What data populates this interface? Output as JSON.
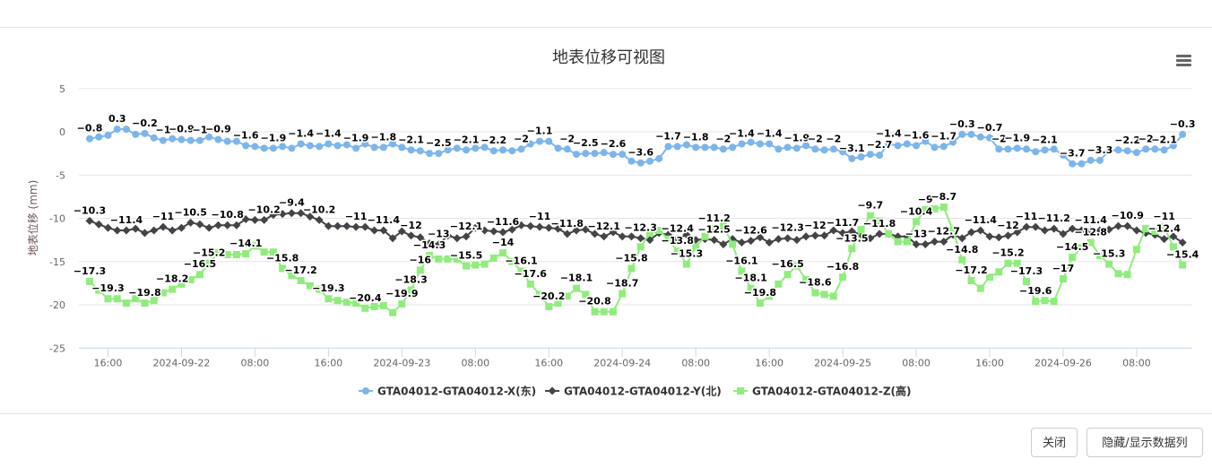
{
  "chart_data": {
    "type": "line",
    "title": "地表位移可视图",
    "ylabel": "地表位移 (mm)",
    "xlabel": "",
    "ylim": [
      -25,
      5
    ],
    "yticks": [
      5,
      0,
      -5,
      -10,
      -15,
      -20,
      -25
    ],
    "grid": true,
    "legend_position": "bottom",
    "data_labels": true,
    "x_ticks": [
      {
        "t": "2024-09-21 16:00",
        "label": "16:00"
      },
      {
        "t": "2024-09-22 00:00",
        "label": "2024-09-22"
      },
      {
        "t": "2024-09-22 08:00",
        "label": "08:00"
      },
      {
        "t": "2024-09-22 16:00",
        "label": "16:00"
      },
      {
        "t": "2024-09-23 00:00",
        "label": "2024-09-23"
      },
      {
        "t": "2024-09-23 08:00",
        "label": "08:00"
      },
      {
        "t": "2024-09-23 16:00",
        "label": "16:00"
      },
      {
        "t": "2024-09-24 00:00",
        "label": "2024-09-24"
      },
      {
        "t": "2024-09-24 08:00",
        "label": "08:00"
      },
      {
        "t": "2024-09-24 16:00",
        "label": "16:00"
      },
      {
        "t": "2024-09-25 00:00",
        "label": "2024-09-25"
      },
      {
        "t": "2024-09-25 08:00",
        "label": "08:00"
      },
      {
        "t": "2024-09-25 16:00",
        "label": "16:00"
      },
      {
        "t": "2024-09-26 00:00",
        "label": "2024-09-26"
      },
      {
        "t": "2024-09-26 08:00",
        "label": "08:00"
      }
    ],
    "x": [
      "2024-09-21 14:00",
      "2024-09-21 15:00",
      "2024-09-21 16:00",
      "2024-09-21 17:00",
      "2024-09-21 18:00",
      "2024-09-21 19:00",
      "2024-09-21 20:00",
      "2024-09-21 21:00",
      "2024-09-21 22:00",
      "2024-09-21 23:00",
      "2024-09-22 00:00",
      "2024-09-22 01:00",
      "2024-09-22 02:00",
      "2024-09-22 03:00",
      "2024-09-22 04:00",
      "2024-09-22 05:00",
      "2024-09-22 06:00",
      "2024-09-22 07:00",
      "2024-09-22 08:00",
      "2024-09-22 09:00",
      "2024-09-22 10:00",
      "2024-09-22 11:00",
      "2024-09-22 12:00",
      "2024-09-22 13:00",
      "2024-09-22 14:00",
      "2024-09-22 15:00",
      "2024-09-22 16:00",
      "2024-09-22 17:00",
      "2024-09-22 18:00",
      "2024-09-22 19:00",
      "2024-09-22 20:00",
      "2024-09-22 21:00",
      "2024-09-22 22:00",
      "2024-09-22 23:00",
      "2024-09-23 00:00",
      "2024-09-23 01:00",
      "2024-09-23 02:00",
      "2024-09-23 03:00",
      "2024-09-23 04:00",
      "2024-09-23 05:00",
      "2024-09-23 06:00",
      "2024-09-23 07:00",
      "2024-09-23 08:00",
      "2024-09-23 09:00",
      "2024-09-23 10:00",
      "2024-09-23 11:00",
      "2024-09-23 12:00",
      "2024-09-23 13:00",
      "2024-09-23 14:00",
      "2024-09-23 15:00",
      "2024-09-23 16:00",
      "2024-09-23 17:00",
      "2024-09-23 18:00",
      "2024-09-23 19:00",
      "2024-09-23 20:00",
      "2024-09-23 21:00",
      "2024-09-23 22:00",
      "2024-09-23 23:00",
      "2024-09-24 00:00",
      "2024-09-24 01:00",
      "2024-09-24 02:00",
      "2024-09-24 03:00",
      "2024-09-24 04:00",
      "2024-09-24 05:00",
      "2024-09-24 06:00",
      "2024-09-24 07:00",
      "2024-09-24 08:00",
      "2024-09-24 09:00",
      "2024-09-24 10:00",
      "2024-09-24 11:00",
      "2024-09-24 12:00",
      "2024-09-24 13:00",
      "2024-09-24 14:00",
      "2024-09-24 15:00",
      "2024-09-24 16:00",
      "2024-09-24 17:00",
      "2024-09-24 18:00",
      "2024-09-24 19:00",
      "2024-09-24 20:00",
      "2024-09-24 21:00",
      "2024-09-24 22:00",
      "2024-09-24 23:00",
      "2024-09-25 00:00",
      "2024-09-25 01:00",
      "2024-09-25 02:00",
      "2024-09-25 03:00",
      "2024-09-25 04:00",
      "2024-09-25 05:00",
      "2024-09-25 06:00",
      "2024-09-25 07:00",
      "2024-09-25 08:00",
      "2024-09-25 09:00",
      "2024-09-25 10:00",
      "2024-09-25 11:00",
      "2024-09-25 12:00",
      "2024-09-25 13:00",
      "2024-09-25 14:00",
      "2024-09-25 15:00",
      "2024-09-25 16:00",
      "2024-09-25 17:00",
      "2024-09-25 18:00",
      "2024-09-25 19:00",
      "2024-09-25 20:00",
      "2024-09-25 21:00",
      "2024-09-25 22:00",
      "2024-09-25 23:00",
      "2024-09-26 00:00",
      "2024-09-26 01:00",
      "2024-09-26 02:00",
      "2024-09-26 03:00",
      "2024-09-26 04:00",
      "2024-09-26 05:00",
      "2024-09-26 06:00",
      "2024-09-26 07:00",
      "2024-09-26 08:00",
      "2024-09-26 09:00",
      "2024-09-26 10:00",
      "2024-09-26 11:00",
      "2024-09-26 12:00",
      "2024-09-26 13:00"
    ],
    "series": [
      {
        "name": "GTA04012-GTA04012-X(东)",
        "color": "#7cb5ec",
        "marker": "circle",
        "values": [
          -0.8,
          -0.6,
          -0.4,
          0.3,
          0.3,
          -0.3,
          -0.2,
          -0.7,
          -1.0,
          -0.8,
          -0.9,
          -1.0,
          -1.0,
          -0.6,
          -0.9,
          -1.1,
          -1.1,
          -1.6,
          -1.7,
          -1.9,
          -1.9,
          -1.7,
          -1.9,
          -1.4,
          -1.6,
          -1.7,
          -1.4,
          -1.6,
          -1.5,
          -1.9,
          -1.4,
          -1.8,
          -1.8,
          -1.4,
          -1.8,
          -2.1,
          -2.2,
          -2.5,
          -2.5,
          -2.1,
          -1.9,
          -2.1,
          -1.9,
          -1.8,
          -2.2,
          -2.1,
          -2.2,
          -2.0,
          -1.4,
          -1.1,
          -1.1,
          -1.9,
          -2.0,
          -2.6,
          -2.5,
          -2.5,
          -2.4,
          -2.6,
          -2.6,
          -3.4,
          -3.6,
          -3.4,
          -3.1,
          -1.7,
          -1.7,
          -1.5,
          -1.8,
          -1.8,
          -1.8,
          -2.0,
          -1.8,
          -1.4,
          -1.2,
          -1.4,
          -1.4,
          -2.0,
          -1.8,
          -1.9,
          -1.6,
          -2.0,
          -2.1,
          -2.0,
          -2.3,
          -3.1,
          -2.9,
          -2.6,
          -2.7,
          -1.4,
          -1.6,
          -1.4,
          -1.6,
          -1.1,
          -1.8,
          -1.7,
          -1.2,
          -0.3,
          -0.3,
          -0.6,
          -0.7,
          -2.0,
          -2.0,
          -1.9,
          -2.0,
          -2.3,
          -2.1,
          -2.0,
          -2.7,
          -3.7,
          -3.7,
          -3.3,
          -3.3,
          -2.2,
          -2.1,
          -2.2,
          -2.4,
          -2.0,
          -2.0,
          -2.1,
          -1.6,
          -0.3
        ]
      },
      {
        "name": "GTA04012-GTA04012-Y(北)",
        "color": "#434348",
        "marker": "diamond",
        "values": [
          -10.3,
          -10.7,
          -11.1,
          -11.4,
          -11.4,
          -11.2,
          -11.7,
          -11.4,
          -11.0,
          -11.4,
          -11.1,
          -10.5,
          -10.7,
          -11.1,
          -10.8,
          -10.8,
          -10.8,
          -10.1,
          -10.2,
          -10.2,
          -9.6,
          -9.5,
          -9.4,
          -9.4,
          -9.8,
          -10.2,
          -10.9,
          -10.9,
          -10.9,
          -11.0,
          -11.0,
          -11.4,
          -11.4,
          -12.3,
          -11.5,
          -12.0,
          -12.2,
          -12.9,
          -13.0,
          -12.0,
          -12.3,
          -12.1,
          -11.1,
          -11.4,
          -11.5,
          -11.6,
          -11.3,
          -10.8,
          -10.9,
          -11.0,
          -11.1,
          -11.2,
          -11.8,
          -11.4,
          -11.3,
          -11.8,
          -12.1,
          -11.6,
          -12.1,
          -12.1,
          -12.3,
          -12.5,
          -11.7,
          -11.9,
          -12.4,
          -11.9,
          -12.5,
          -12.4,
          -12.5,
          -13.0,
          -12.4,
          -12.8,
          -12.6,
          -12.2,
          -12.8,
          -12.4,
          -12.3,
          -12.5,
          -12.1,
          -12.0,
          -12.0,
          -11.4,
          -11.7,
          -11.5,
          -11.9,
          -12.3,
          -11.8,
          -11.8,
          -12.1,
          -12.1,
          -13.0,
          -13.0,
          -12.7,
          -12.7,
          -11.9,
          -12.3,
          -11.6,
          -11.4,
          -12.1,
          -12.2,
          -12.0,
          -11.6,
          -11.0,
          -11.0,
          -11.4,
          -11.2,
          -11.8,
          -11.2,
          -11.4,
          -11.4,
          -11.4,
          -11.3,
          -10.9,
          -10.9,
          -11.4,
          -11.7,
          -11.9,
          -12.4,
          -12.1,
          -12.8
        ]
      },
      {
        "name": "GTA04012-GTA04012-Z(高)",
        "color": "#90ed7d",
        "marker": "square",
        "values": [
          -17.3,
          -18.3,
          -19.3,
          -19.3,
          -19.8,
          -19.3,
          -19.8,
          -19.5,
          -18.6,
          -18.2,
          -17.6,
          -17.1,
          -16.5,
          -15.2,
          -14.0,
          -14.2,
          -14.2,
          -14.1,
          -13.2,
          -13.9,
          -13.9,
          -15.8,
          -16.6,
          -17.2,
          -17.8,
          -18.2,
          -19.3,
          -19.5,
          -19.7,
          -19.8,
          -20.4,
          -20.2,
          -20.1,
          -20.9,
          -19.9,
          -18.3,
          -16.0,
          -14.3,
          -14.7,
          -14.7,
          -14.7,
          -15.5,
          -15.4,
          -15.3,
          -14.6,
          -14.0,
          -15.0,
          -16.1,
          -17.6,
          -18.8,
          -20.2,
          -19.8,
          -19.0,
          -18.1,
          -18.8,
          -20.8,
          -20.8,
          -20.8,
          -18.7,
          -15.8,
          -13.3,
          -11.7,
          -11.4,
          -12.4,
          -13.8,
          -15.3,
          -13.3,
          -12.1,
          -11.2,
          -10.9,
          -13.0,
          -16.1,
          -18.1,
          -19.8,
          -19.0,
          -17.6,
          -16.5,
          -15.5,
          -17.1,
          -18.6,
          -18.8,
          -19.0,
          -16.8,
          -13.5,
          -11.3,
          -9.7,
          -10.3,
          -11.8,
          -12.7,
          -12.7,
          -10.4,
          -9.0,
          -8.9,
          -8.7,
          -11.4,
          -14.8,
          -17.2,
          -18.1,
          -16.8,
          -16.2,
          -15.2,
          -15.2,
          -17.3,
          -19.6,
          -19.5,
          -19.6,
          -17.0,
          -14.5,
          -13.4,
          -12.8,
          -14.3,
          -15.3,
          -16.4,
          -16.5,
          -13.6,
          -11.2,
          -11.5,
          -11.0,
          -13.3,
          -15.4
        ]
      }
    ]
  },
  "footer": {
    "close_label": "关闭",
    "toggle_data_label": "隐藏/显示数据列"
  },
  "menu": {
    "icon": "hamburger-menu-icon"
  }
}
